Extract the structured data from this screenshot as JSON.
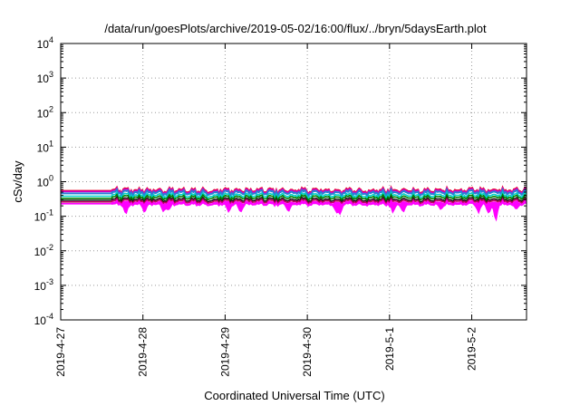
{
  "chart_data": {
    "type": "area",
    "title": "/data/run/goesPlots/archive/2019-05-02/16:00/flux/../bryn/5daysEarth.plot",
    "xlabel": "Coordinated Universal Time (UTC)",
    "ylabel": "cSv/day",
    "yscale": "log",
    "ylim": [
      0.0001,
      10000
    ],
    "xlim": [
      "2019-04-27 00:00",
      "2019-05-02 16:00"
    ],
    "xticks": [
      "2019-4-27",
      "2019-4-28",
      "2019-4-29",
      "2019-4-30",
      "2019-5-1",
      "2019-5-2"
    ],
    "yticks": [
      {
        "base": "10",
        "exp": "-4"
      },
      {
        "base": "10",
        "exp": "-3"
      },
      {
        "base": "10",
        "exp": "-2"
      },
      {
        "base": "10",
        "exp": "-1"
      },
      {
        "base": "10",
        "exp": "0"
      },
      {
        "base": "10",
        "exp": "1"
      },
      {
        "base": "10",
        "exp": "2"
      },
      {
        "base": "10",
        "exp": "3"
      },
      {
        "base": "10",
        "exp": "4"
      }
    ],
    "grid": true,
    "legend": "none",
    "data_start": "2019-04-27 15:00",
    "series": [
      {
        "color": "#e8001c",
        "constant_before_start": 0.55,
        "mean": 0.56
      },
      {
        "color": "#d000d0",
        "constant_before_start": 0.52,
        "mean": 0.53
      },
      {
        "color": "#2a7fd4",
        "constant_before_start": 0.46,
        "mean": 0.48
      },
      {
        "color": "#00d0c8",
        "constant_before_start": 0.38,
        "mean": 0.4
      },
      {
        "color": "#008000",
        "constant_before_start": 0.33,
        "mean": 0.35
      },
      {
        "color": "#1a1a1a",
        "constant_before_start": 0.29,
        "mean": 0.3
      },
      {
        "color": "#c00060",
        "constant_before_start": 0.26,
        "mean": 0.27
      },
      {
        "color": "#ff00ff",
        "constant_before_start": 0.23,
        "mean": 0.24,
        "filled": true
      }
    ],
    "dips": [
      {
        "time": "2019-04-27 19:00",
        "value": 0.1
      },
      {
        "time": "2019-04-28 00:30",
        "value": 0.12
      },
      {
        "time": "2019-04-28 06:00",
        "value": 0.13
      },
      {
        "time": "2019-04-28 07:30",
        "value": 0.14
      },
      {
        "time": "2019-04-29 01:00",
        "value": 0.13
      },
      {
        "time": "2019-04-29 04:30",
        "value": 0.12
      },
      {
        "time": "2019-04-29 18:30",
        "value": 0.13
      },
      {
        "time": "2019-04-30 08:30",
        "value": 0.12
      },
      {
        "time": "2019-04-30 09:30",
        "value": 0.11
      },
      {
        "time": "2019-05-01 01:00",
        "value": 0.12
      },
      {
        "time": "2019-05-01 04:00",
        "value": 0.12
      },
      {
        "time": "2019-05-01 15:00",
        "value": 0.15
      },
      {
        "time": "2019-05-02 02:00",
        "value": 0.12
      },
      {
        "time": "2019-05-02 05:00",
        "value": 0.11
      },
      {
        "time": "2019-05-02 07:00",
        "value": 0.055
      },
      {
        "time": "2019-05-02 13:00",
        "value": 0.15
      }
    ]
  }
}
